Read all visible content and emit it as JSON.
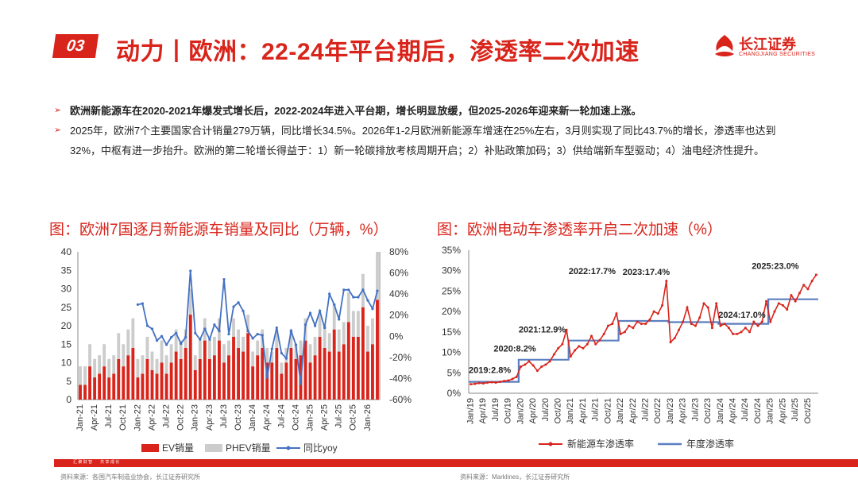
{
  "header": {
    "badge": "03",
    "title": "动力丨欧洲：22-24年平台期后，渗透率二次加速",
    "logo_cn": "长江证券",
    "logo_en": "CHANGJIANG SECURITIES"
  },
  "bullets": [
    {
      "text": "欧洲新能源车在2020-2021年爆发式增长后，2022-2024年进入平台期，增长明显放缓，但2025-2026年迎来新一轮加速上涨。"
    },
    {
      "line1": "2025年，欧洲7个主要国家合计销量279万辆，同比增长34.5%。2026年1-2月欧洲新能源车增速在25%左右，3月则实现了同比43.7%的增长，渗透率也达到",
      "line2": "32%，中枢有进一步抬升。欧洲的第二轮增长得益于：1）新一轮碳排放考核周期开启；2）补贴政策加码；3）供给端新车型驱动；4）油电经济性提升。"
    }
  ],
  "colors": {
    "brand_red": "#d9241b",
    "ev_red": "#d9241b",
    "phev_grey": "#cccccc",
    "yoy_blue": "#4472c4",
    "pen_red": "#d9241b",
    "annual_blue": "#5b7fc0"
  },
  "footer": {
    "slogan": "汇 聚 财 智　　共 享 成 长",
    "source_left": "资料来源：各国汽车制造业协会，长江证券研究所",
    "source_right": "资料来源：Marklines，长江证券研究所"
  },
  "chart_data": [
    {
      "type": "bar",
      "title": "图：欧洲7国逐月新能源车销量及同比（万辆，%）",
      "stacked": true,
      "y_left": {
        "ylim": [
          0,
          40
        ],
        "ticks": [
          "0",
          "5",
          "10",
          "15",
          "20",
          "25",
          "30",
          "35",
          "40"
        ]
      },
      "y_right": {
        "ylim": [
          -60,
          80
        ],
        "ticks": [
          "-60%",
          "-40%",
          "-20%",
          "0%",
          "20%",
          "40%",
          "60%",
          "80%"
        ]
      },
      "x_ticks": [
        "Jan-21",
        "Apr-21",
        "Jul-21",
        "Oct-21",
        "Jan-22",
        "Apr-22",
        "Jul-22",
        "Oct-22",
        "Jan-23",
        "Apr-23",
        "Jul-23",
        "Oct-23",
        "Jan-24",
        "Apr-24",
        "Jul-24",
        "Oct-24",
        "Jan-25",
        "Apr-25",
        "Jul-25",
        "Oct-25",
        "Jan-26"
      ],
      "legend": [
        "EV销量",
        "PHEV销量",
        "同比yoy"
      ],
      "series": [
        {
          "name": "EV销量",
          "values": [
            4,
            4,
            9,
            6,
            7,
            9,
            6,
            7,
            11,
            9,
            12,
            14,
            6,
            7,
            11,
            8,
            7,
            10,
            7,
            10,
            13,
            11,
            14,
            23,
            8,
            11,
            16,
            11,
            12,
            16,
            10,
            12,
            17,
            14,
            13,
            18,
            9,
            12,
            14,
            10,
            10,
            14,
            7,
            10,
            14,
            11,
            12,
            16,
            10,
            12,
            17,
            14,
            13,
            19,
            13,
            15,
            21,
            17,
            17,
            25,
            13,
            15,
            27
          ]
        },
        {
          "name": "PHEV销量",
          "values": [
            5,
            5,
            6,
            5,
            5,
            6,
            5,
            5,
            7,
            6,
            7,
            8,
            5,
            5,
            6,
            5,
            4,
            6,
            5,
            5,
            6,
            5,
            5,
            7,
            4,
            5,
            6,
            5,
            5,
            6,
            5,
            4,
            5,
            5,
            4,
            5,
            4,
            4,
            5,
            4,
            3,
            5,
            3,
            4,
            5,
            4,
            4,
            6,
            5,
            5,
            6,
            6,
            5,
            7,
            6,
            6,
            8,
            7,
            7,
            9,
            7,
            7,
            13
          ]
        },
        {
          "name": "同比yoy",
          "values": [
            null,
            null,
            null,
            null,
            null,
            null,
            null,
            null,
            null,
            null,
            null,
            null,
            30,
            31,
            10,
            7,
            -4,
            0,
            -8,
            -1,
            3,
            -7,
            -1,
            62,
            3,
            -3,
            7,
            -3,
            11,
            5,
            54,
            2,
            28,
            32,
            24,
            5,
            -2,
            2,
            1,
            -39,
            -12,
            8,
            -16,
            -21,
            5,
            -8,
            -45,
            11,
            22,
            10,
            24,
            8,
            40,
            30,
            16,
            44,
            44,
            37,
            37,
            44,
            34,
            26,
            43
          ]
        }
      ]
    },
    {
      "type": "line",
      "title": "图：欧洲电动车渗透率开启二次加速（%）",
      "y_ticks": [
        "0%",
        "5%",
        "10%",
        "15%",
        "20%",
        "25%",
        "30%",
        "35%"
      ],
      "ylim": [
        0,
        35
      ],
      "x_ticks": [
        "Jan/19",
        "Apr/19",
        "Jul/19",
        "Oct/19",
        "Jan/20",
        "Apr/20",
        "Jul/20",
        "Oct/20",
        "Jan/21",
        "Apr/21",
        "Jul/21",
        "Oct/21",
        "Jan/22",
        "Apr/22",
        "Jul/22",
        "Oct/22",
        "Jan/23",
        "Apr/23",
        "Jul/23",
        "Oct/23",
        "Jan/24",
        "Apr/24",
        "Jul/24",
        "Oct/24",
        "Jan/25",
        "Apr/25",
        "Jul/25",
        "Oct/25"
      ],
      "legend": [
        "新能源车渗透率",
        "年度渗透率"
      ],
      "annotations": [
        "2019:2.8%",
        "2020:8.2%",
        "2021:12.9%",
        "2022:17.7%",
        "2023:17.4%",
        "2024:17.0%",
        "2025:23.0%"
      ],
      "series": [
        {
          "name": "新能源车渗透率",
          "values": [
            2.2,
            2.3,
            2.5,
            2.4,
            2.6,
            2.7,
            2.6,
            2.8,
            3.0,
            3.1,
            3.5,
            4.0,
            6.5,
            7.0,
            7.8,
            6.8,
            5.5,
            6.5,
            7.0,
            7.8,
            9.5,
            11.0,
            12.0,
            15.5,
            9.0,
            10.5,
            11.5,
            11.0,
            12.0,
            14.0,
            12.0,
            13.0,
            14.5,
            16.5,
            17.0,
            19.5,
            14.5,
            15.0,
            16.5,
            16.0,
            17.5,
            17.0,
            17.0,
            18.0,
            20.0,
            19.5,
            21.5,
            27.5,
            12.5,
            13.5,
            15.5,
            17.5,
            21.0,
            17.0,
            16.5,
            18.5,
            22.0,
            21.0,
            16.0,
            22.0,
            16.5,
            17.0,
            16.0,
            14.5,
            14.5,
            15.0,
            16.0,
            15.0,
            17.5,
            16.5,
            17.5,
            22.5,
            17.5,
            20.0,
            22.0,
            21.5,
            20.5,
            24.0,
            22.5,
            24.5,
            26.5,
            25.5,
            27.5,
            29.0
          ]
        },
        {
          "name": "年度渗透率",
          "values": [
            2.8,
            8.2,
            12.9,
            17.7,
            17.4,
            17.0,
            23.0
          ]
        }
      ]
    }
  ]
}
